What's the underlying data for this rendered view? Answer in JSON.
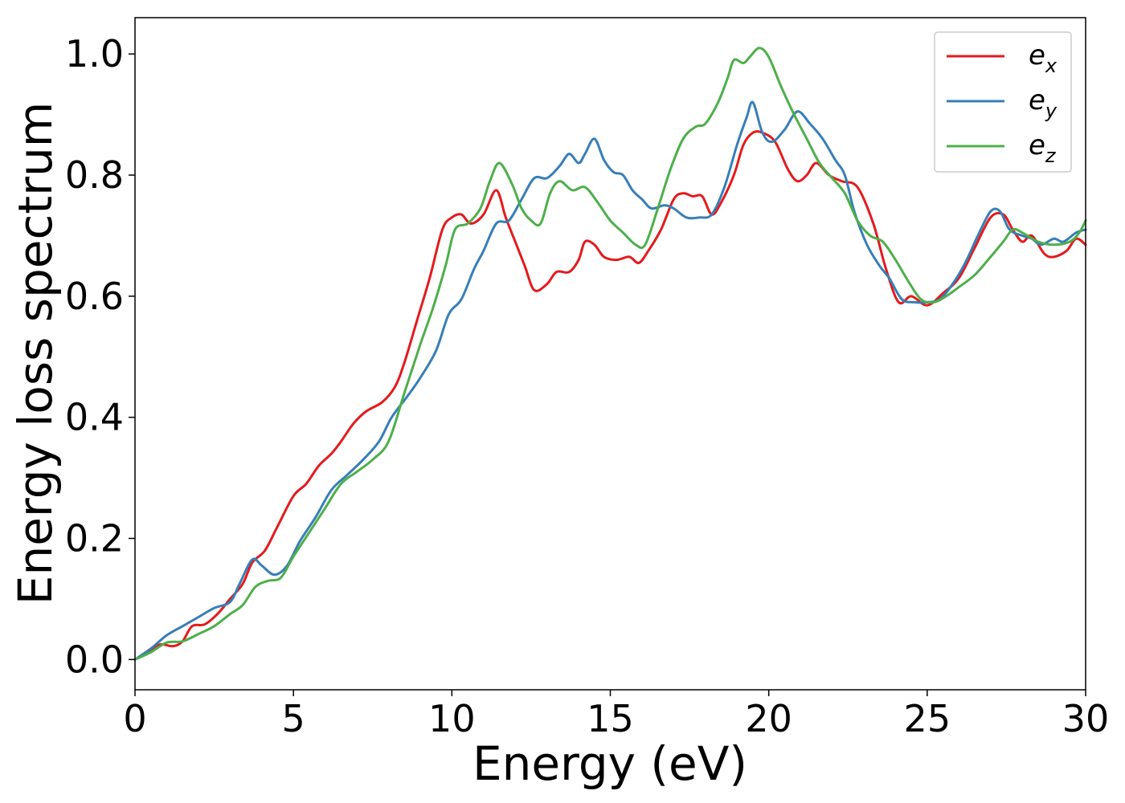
{
  "chart_data": {
    "type": "line",
    "xlabel": "Energy (eV)",
    "ylabel": "Energy loss spectrum",
    "xlim": [
      0,
      30
    ],
    "ylim": [
      -0.05,
      1.06
    ],
    "x_ticks": [
      0,
      5,
      10,
      15,
      20,
      25,
      30
    ],
    "y_ticks": [
      0.0,
      0.2,
      0.4,
      0.6,
      0.8,
      1.0
    ],
    "x_tick_labels": [
      "0",
      "5",
      "10",
      "15",
      "20",
      "25",
      "30"
    ],
    "y_tick_labels": [
      "0.0",
      "0.2",
      "0.4",
      "0.6",
      "0.8",
      "1.0"
    ],
    "grid": false,
    "legend_position": "top-right",
    "series": [
      {
        "name": "e_x",
        "label_base": "e",
        "label_sub": "x",
        "color": "#e41a1c",
        "points": [
          [
            0,
            0.0
          ],
          [
            0.5,
            0.015
          ],
          [
            0.8,
            0.025
          ],
          [
            1.2,
            0.022
          ],
          [
            1.5,
            0.03
          ],
          [
            1.8,
            0.055
          ],
          [
            2.2,
            0.058
          ],
          [
            2.6,
            0.075
          ],
          [
            3.0,
            0.1
          ],
          [
            3.4,
            0.125
          ],
          [
            3.7,
            0.16
          ],
          [
            4.1,
            0.18
          ],
          [
            4.5,
            0.22
          ],
          [
            5.0,
            0.27
          ],
          [
            5.4,
            0.29
          ],
          [
            5.8,
            0.32
          ],
          [
            6.2,
            0.34
          ],
          [
            6.5,
            0.36
          ],
          [
            6.9,
            0.39
          ],
          [
            7.3,
            0.41
          ],
          [
            7.8,
            0.425
          ],
          [
            8.2,
            0.45
          ],
          [
            8.5,
            0.49
          ],
          [
            8.9,
            0.56
          ],
          [
            9.3,
            0.63
          ],
          [
            9.7,
            0.71
          ],
          [
            10.0,
            0.73
          ],
          [
            10.3,
            0.735
          ],
          [
            10.6,
            0.72
          ],
          [
            11.0,
            0.735
          ],
          [
            11.4,
            0.775
          ],
          [
            11.7,
            0.73
          ],
          [
            12.0,
            0.69
          ],
          [
            12.3,
            0.65
          ],
          [
            12.6,
            0.61
          ],
          [
            13.0,
            0.62
          ],
          [
            13.3,
            0.64
          ],
          [
            13.7,
            0.64
          ],
          [
            14.0,
            0.66
          ],
          [
            14.2,
            0.69
          ],
          [
            14.5,
            0.685
          ],
          [
            14.8,
            0.665
          ],
          [
            15.2,
            0.66
          ],
          [
            15.6,
            0.665
          ],
          [
            15.9,
            0.655
          ],
          [
            16.2,
            0.675
          ],
          [
            16.6,
            0.71
          ],
          [
            17.0,
            0.76
          ],
          [
            17.3,
            0.77
          ],
          [
            17.6,
            0.765
          ],
          [
            17.9,
            0.765
          ],
          [
            18.2,
            0.735
          ],
          [
            18.5,
            0.755
          ],
          [
            18.9,
            0.8
          ],
          [
            19.2,
            0.85
          ],
          [
            19.5,
            0.87
          ],
          [
            19.8,
            0.87
          ],
          [
            20.2,
            0.855
          ],
          [
            20.6,
            0.81
          ],
          [
            20.9,
            0.79
          ],
          [
            21.2,
            0.8
          ],
          [
            21.5,
            0.82
          ],
          [
            21.9,
            0.8
          ],
          [
            22.3,
            0.79
          ],
          [
            22.8,
            0.78
          ],
          [
            23.3,
            0.72
          ],
          [
            23.7,
            0.645
          ],
          [
            24.1,
            0.59
          ],
          [
            24.5,
            0.6
          ],
          [
            25.0,
            0.585
          ],
          [
            25.5,
            0.605
          ],
          [
            26.0,
            0.63
          ],
          [
            26.5,
            0.68
          ],
          [
            27.0,
            0.73
          ],
          [
            27.4,
            0.735
          ],
          [
            27.7,
            0.71
          ],
          [
            28.0,
            0.69
          ],
          [
            28.3,
            0.7
          ],
          [
            28.7,
            0.67
          ],
          [
            29.0,
            0.665
          ],
          [
            29.4,
            0.675
          ],
          [
            29.7,
            0.695
          ],
          [
            30.0,
            0.685
          ]
        ]
      },
      {
        "name": "e_y",
        "label_base": "e",
        "label_sub": "y",
        "color": "#377eb8",
        "points": [
          [
            0,
            0.0
          ],
          [
            0.5,
            0.018
          ],
          [
            1.0,
            0.04
          ],
          [
            1.5,
            0.055
          ],
          [
            2.0,
            0.07
          ],
          [
            2.5,
            0.085
          ],
          [
            3.0,
            0.095
          ],
          [
            3.3,
            0.125
          ],
          [
            3.7,
            0.165
          ],
          [
            4.0,
            0.155
          ],
          [
            4.4,
            0.14
          ],
          [
            4.8,
            0.155
          ],
          [
            5.2,
            0.195
          ],
          [
            5.7,
            0.235
          ],
          [
            6.2,
            0.28
          ],
          [
            6.7,
            0.305
          ],
          [
            7.2,
            0.33
          ],
          [
            7.7,
            0.36
          ],
          [
            8.1,
            0.4
          ],
          [
            8.6,
            0.435
          ],
          [
            9.0,
            0.465
          ],
          [
            9.5,
            0.51
          ],
          [
            9.9,
            0.57
          ],
          [
            10.3,
            0.595
          ],
          [
            10.7,
            0.645
          ],
          [
            11.0,
            0.675
          ],
          [
            11.4,
            0.72
          ],
          [
            11.8,
            0.725
          ],
          [
            12.2,
            0.76
          ],
          [
            12.6,
            0.795
          ],
          [
            13.0,
            0.795
          ],
          [
            13.4,
            0.815
          ],
          [
            13.7,
            0.835
          ],
          [
            14.0,
            0.82
          ],
          [
            14.2,
            0.835
          ],
          [
            14.5,
            0.86
          ],
          [
            14.8,
            0.825
          ],
          [
            15.1,
            0.805
          ],
          [
            15.4,
            0.8
          ],
          [
            15.7,
            0.775
          ],
          [
            16.0,
            0.76
          ],
          [
            16.3,
            0.745
          ],
          [
            16.7,
            0.75
          ],
          [
            17.0,
            0.745
          ],
          [
            17.4,
            0.73
          ],
          [
            17.8,
            0.73
          ],
          [
            18.2,
            0.735
          ],
          [
            18.6,
            0.78
          ],
          [
            19.0,
            0.85
          ],
          [
            19.3,
            0.895
          ],
          [
            19.5,
            0.92
          ],
          [
            19.8,
            0.87
          ],
          [
            20.1,
            0.855
          ],
          [
            20.5,
            0.875
          ],
          [
            20.9,
            0.905
          ],
          [
            21.3,
            0.885
          ],
          [
            21.7,
            0.86
          ],
          [
            22.1,
            0.825
          ],
          [
            22.4,
            0.8
          ],
          [
            22.7,
            0.74
          ],
          [
            23.1,
            0.685
          ],
          [
            23.5,
            0.65
          ],
          [
            23.8,
            0.63
          ],
          [
            24.2,
            0.595
          ],
          [
            24.6,
            0.59
          ],
          [
            25.0,
            0.59
          ],
          [
            25.4,
            0.595
          ],
          [
            25.8,
            0.62
          ],
          [
            26.2,
            0.655
          ],
          [
            26.6,
            0.7
          ],
          [
            27.0,
            0.74
          ],
          [
            27.3,
            0.74
          ],
          [
            27.6,
            0.71
          ],
          [
            28.0,
            0.7
          ],
          [
            28.3,
            0.695
          ],
          [
            28.6,
            0.685
          ],
          [
            29.0,
            0.695
          ],
          [
            29.3,
            0.69
          ],
          [
            29.7,
            0.705
          ],
          [
            30.0,
            0.71
          ]
        ]
      },
      {
        "name": "e_z",
        "label_base": "e",
        "label_sub": "z",
        "color": "#4daf4a",
        "points": [
          [
            0,
            0.0
          ],
          [
            0.5,
            0.012
          ],
          [
            1.0,
            0.028
          ],
          [
            1.5,
            0.03
          ],
          [
            2.0,
            0.042
          ],
          [
            2.5,
            0.055
          ],
          [
            3.0,
            0.075
          ],
          [
            3.4,
            0.09
          ],
          [
            3.8,
            0.12
          ],
          [
            4.2,
            0.13
          ],
          [
            4.6,
            0.135
          ],
          [
            5.0,
            0.17
          ],
          [
            5.5,
            0.21
          ],
          [
            6.0,
            0.25
          ],
          [
            6.5,
            0.29
          ],
          [
            7.0,
            0.31
          ],
          [
            7.5,
            0.33
          ],
          [
            8.0,
            0.36
          ],
          [
            8.5,
            0.44
          ],
          [
            9.0,
            0.52
          ],
          [
            9.4,
            0.58
          ],
          [
            9.8,
            0.65
          ],
          [
            10.1,
            0.71
          ],
          [
            10.5,
            0.72
          ],
          [
            10.9,
            0.745
          ],
          [
            11.2,
            0.79
          ],
          [
            11.5,
            0.82
          ],
          [
            11.9,
            0.785
          ],
          [
            12.2,
            0.745
          ],
          [
            12.5,
            0.725
          ],
          [
            12.8,
            0.72
          ],
          [
            13.1,
            0.77
          ],
          [
            13.4,
            0.79
          ],
          [
            13.8,
            0.775
          ],
          [
            14.2,
            0.78
          ],
          [
            14.6,
            0.755
          ],
          [
            15.0,
            0.725
          ],
          [
            15.4,
            0.705
          ],
          [
            15.8,
            0.685
          ],
          [
            16.1,
            0.685
          ],
          [
            16.5,
            0.745
          ],
          [
            16.9,
            0.81
          ],
          [
            17.3,
            0.86
          ],
          [
            17.7,
            0.88
          ],
          [
            18.0,
            0.885
          ],
          [
            18.4,
            0.92
          ],
          [
            18.7,
            0.96
          ],
          [
            18.9,
            0.99
          ],
          [
            19.2,
            0.985
          ],
          [
            19.4,
            0.995
          ],
          [
            19.7,
            1.01
          ],
          [
            20.0,
            0.995
          ],
          [
            20.4,
            0.945
          ],
          [
            20.8,
            0.9
          ],
          [
            21.2,
            0.86
          ],
          [
            21.6,
            0.82
          ],
          [
            22.0,
            0.795
          ],
          [
            22.4,
            0.77
          ],
          [
            22.8,
            0.725
          ],
          [
            23.2,
            0.7
          ],
          [
            23.6,
            0.69
          ],
          [
            24.0,
            0.66
          ],
          [
            24.4,
            0.625
          ],
          [
            24.8,
            0.595
          ],
          [
            25.2,
            0.59
          ],
          [
            25.6,
            0.6
          ],
          [
            26.0,
            0.615
          ],
          [
            26.5,
            0.635
          ],
          [
            27.0,
            0.665
          ],
          [
            27.4,
            0.69
          ],
          [
            27.7,
            0.71
          ],
          [
            28.0,
            0.705
          ],
          [
            28.5,
            0.69
          ],
          [
            29.0,
            0.685
          ],
          [
            29.5,
            0.69
          ],
          [
            29.8,
            0.705
          ],
          [
            30.0,
            0.725
          ]
        ]
      }
    ]
  }
}
